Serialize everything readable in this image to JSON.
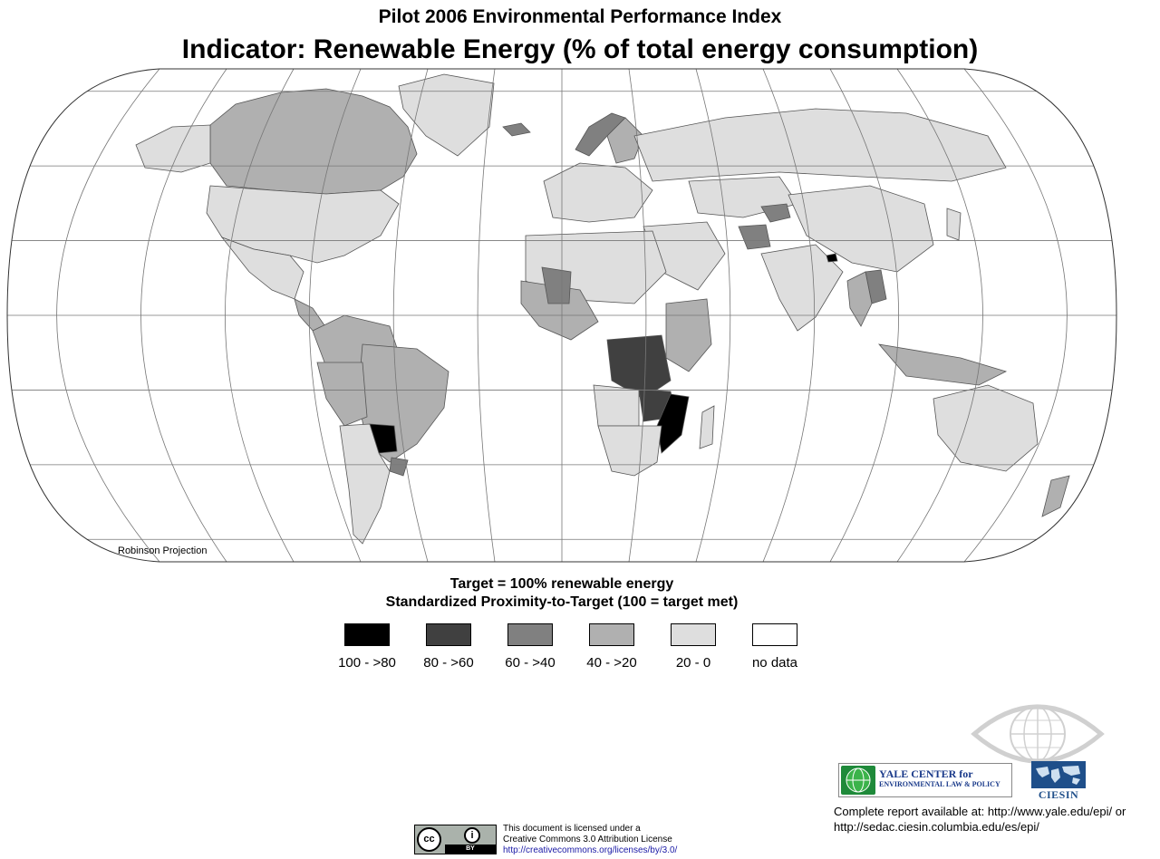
{
  "title": "Pilot 2006 Environmental Performance Index",
  "subtitle": "Indicator: Renewable Energy (% of total energy consumption)",
  "map": {
    "projection_label": "Robinson Projection",
    "ocean_color": "#ffffff",
    "graticule_color": "#777777"
  },
  "legend": {
    "target": "Target = 100% renewable energy",
    "subtitle": "Standardized Proximity-to-Target (100 = target met)",
    "classes": [
      {
        "label": "100 - >80",
        "color": "#000000"
      },
      {
        "label": "80 - >60",
        "color": "#404040"
      },
      {
        "label": "60 - >40",
        "color": "#808080"
      },
      {
        "label": "40 - >20",
        "color": "#b0b0b0"
      },
      {
        "label": "20 - 0",
        "color": "#dedede"
      },
      {
        "label": "no data",
        "color": "#ffffff"
      }
    ]
  },
  "logos": {
    "yale_line1": "YALE CENTER for",
    "yale_line2": "ENVIRONMENTAL LAW & POLICY",
    "ciesin": "CIESIN"
  },
  "report_note": {
    "line1": "Complete report available at: http://www.yale.edu/epi/ or",
    "line2": "http://sedac.ciesin.columbia.edu/es/epi/"
  },
  "license": {
    "cc_label": "cc",
    "by_label": "BY",
    "line1": "This document is licensed under a",
    "line2": "Creative Commons 3.0 Attribution License",
    "url": "http://creativecommons.org/licenses/by/3.0/"
  }
}
